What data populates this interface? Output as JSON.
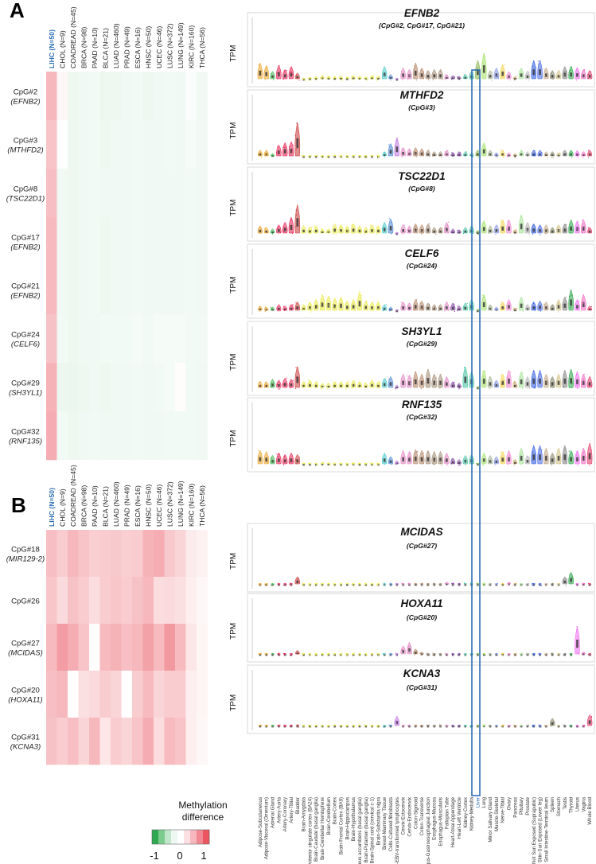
{
  "panels": [
    {
      "letter": "A",
      "columns": [
        "LIHC (N=50)",
        "CHOL (N=9)",
        "COADREAD (N=45)",
        "BRCA (N=98)",
        "PAAD (N=10)",
        "BLCA (N=21)",
        "LUAD (N=460)",
        "PRAD (N=49)",
        "ESCA (N=16)",
        "HNSC (N=50)",
        "UCEC (N=46)",
        "LUSC (N=372)",
        "LUNG (N=149)",
        "KIRC (N=160)",
        "THCA (N=56)"
      ],
      "rows": [
        {
          "cpg": "CpG#2",
          "gene": "(EFNB2)",
          "values": [
            0.42,
            0.05,
            -0.08,
            -0.07,
            -0.06,
            -0.09,
            -0.08,
            -0.07,
            -0.06,
            -0.08,
            -0.07,
            -0.06,
            -0.07,
            -0.02,
            -0.07
          ]
        },
        {
          "cpg": "CpG#3",
          "gene": "(MTHFD2)",
          "values": [
            0.35,
            -0.01,
            -0.08,
            -0.07,
            -0.06,
            -0.08,
            -0.07,
            -0.07,
            -0.06,
            -0.07,
            -0.07,
            -0.06,
            -0.07,
            -0.05,
            -0.07
          ]
        },
        {
          "cpg": "CpG#8",
          "gene": "(TSC22D1)",
          "values": [
            0.38,
            -0.07,
            -0.08,
            -0.07,
            -0.06,
            -0.07,
            -0.07,
            -0.07,
            -0.06,
            -0.07,
            -0.07,
            -0.07,
            -0.07,
            -0.06,
            -0.07
          ]
        },
        {
          "cpg": "CpG#17",
          "gene": "(EFNB2)",
          "values": [
            0.4,
            -0.07,
            -0.08,
            -0.07,
            -0.06,
            -0.08,
            -0.07,
            -0.07,
            -0.06,
            -0.07,
            -0.07,
            -0.07,
            -0.07,
            -0.06,
            -0.07
          ]
        },
        {
          "cpg": "CpG#21",
          "gene": "(EFNB2)",
          "values": [
            0.4,
            -0.07,
            -0.08,
            -0.07,
            -0.06,
            -0.08,
            -0.07,
            -0.07,
            -0.06,
            -0.07,
            -0.07,
            -0.07,
            -0.07,
            -0.06,
            -0.07
          ]
        },
        {
          "cpg": "CpG#24",
          "gene": "(CELF6)",
          "values": [
            0.36,
            -0.06,
            -0.08,
            -0.07,
            -0.07,
            -0.06,
            -0.06,
            -0.06,
            -0.05,
            -0.06,
            -0.05,
            -0.05,
            -0.05,
            -0.06,
            -0.06
          ]
        },
        {
          "cpg": "CpG#29",
          "gene": "(SH3YL1)",
          "values": [
            0.45,
            -0.09,
            -0.1,
            -0.08,
            -0.07,
            -0.08,
            -0.07,
            -0.07,
            -0.06,
            -0.07,
            -0.06,
            -0.05,
            0.02,
            -0.06,
            -0.07
          ]
        },
        {
          "cpg": "CpG#32",
          "gene": "(RNF135)",
          "values": [
            0.48,
            -0.06,
            -0.08,
            -0.07,
            -0.06,
            -0.07,
            -0.07,
            -0.07,
            -0.06,
            -0.07,
            -0.07,
            -0.06,
            -0.06,
            -0.06,
            -0.07
          ]
        }
      ],
      "violins": [
        {
          "gene": "EFNB2",
          "sub": "(CpG#2, CpG#17, CpG#21)"
        },
        {
          "gene": "MTHFD2",
          "sub": "(CpG#3)"
        },
        {
          "gene": "TSC22D1",
          "sub": "(CpG#8)"
        },
        {
          "gene": "CELF6",
          "sub": "(CpG#24)"
        },
        {
          "gene": "SH3YL1",
          "sub": "(CpG#29)"
        },
        {
          "gene": "RNF135",
          "sub": "(CpG#32)"
        }
      ]
    },
    {
      "letter": "B",
      "columns": [
        "LIHC (N=50)",
        "CHOL (N=9)",
        "COADREAD (N=45)",
        "BRCA (N=98)",
        "PAAD (N=10)",
        "BLCA (N=21)",
        "LUAD (N=460)",
        "PRAD (N=49)",
        "ESCA (N=16)",
        "HNSC (N=50)",
        "UCEC (N=46)",
        "LUSC (N=372)",
        "LUNG (N=149)",
        "KIRC (N=160)",
        "THCA (N=56)"
      ],
      "rows": [
        {
          "cpg": "CpG#18",
          "gene": "(MIR129-2)",
          "values": [
            0.38,
            0.3,
            0.42,
            0.35,
            0.28,
            0.3,
            0.32,
            0.28,
            0.3,
            0.45,
            0.48,
            0.32,
            0.25,
            0.12,
            0.08
          ]
        },
        {
          "cpg": "CpG#26",
          "gene": "",
          "values": [
            0.34,
            0.22,
            0.36,
            0.3,
            0.2,
            0.3,
            0.34,
            0.3,
            0.36,
            0.42,
            0.2,
            0.22,
            0.18,
            0.1,
            0.05
          ]
        },
        {
          "cpg": "CpG#27",
          "gene": "(MCIDAS)",
          "values": [
            0.4,
            0.58,
            0.48,
            0.35,
            0.02,
            0.4,
            0.45,
            0.38,
            0.42,
            0.55,
            0.4,
            0.6,
            0.4,
            0.15,
            0.06
          ]
        },
        {
          "cpg": "CpG#20",
          "gene": "(HOXA11)",
          "values": [
            0.38,
            0.42,
            0.01,
            0.18,
            0.22,
            0.3,
            0.25,
            0.01,
            0.3,
            0.4,
            0.25,
            0.3,
            0.3,
            0.1,
            0.06
          ]
        },
        {
          "cpg": "CpG#31",
          "gene": "(KCNA3)",
          "values": [
            0.36,
            0.3,
            0.38,
            0.25,
            0.42,
            0.15,
            0.3,
            0.25,
            0.35,
            0.48,
            0.2,
            0.4,
            0.35,
            0.1,
            0.05
          ]
        }
      ],
      "violins": [
        {
          "gene": "MCIDAS",
          "sub": "(CpG#27)"
        },
        {
          "gene": "HOXA11",
          "sub": "(CpG#20)"
        },
        {
          "gene": "KCNA3",
          "sub": "(CpG#31)"
        }
      ]
    }
  ],
  "y_label": "TPM",
  "highlight_tissue": "Liver",
  "tissues": [
    "Adipose-Subcutaneous",
    "Adipose-Visceral (Omentum)",
    "Adrenal Gland",
    "Artery-Aorta",
    "Artery-Coronary",
    "Artery-Tibial",
    "Bladder",
    "Brain-Amygdala",
    "Brain-Anterior cingulate cortex (BA24)",
    "Brain-Caudate (basal ganglia)",
    "Brain-Cerebellar Hemisphere",
    "Brain-Cerebellum",
    "Brain-Cortex",
    "Brain-Frontal Cortex (BA9)",
    "Brain-Hippocampus",
    "Brain-Hypothalamus",
    "Brain-Nucleus accumbens (basal ganglia)",
    "Brain-Putamen (basal ganglia)",
    "Brain-Spinal cord (cervical c-1)",
    "Brain-Substantia nigra",
    "Breast-Mammary Tissue",
    "Cells-Cultured fibroblasts",
    "Cells-EBV-transformed lymphocytes",
    "Cervix-Ectocervix",
    "Cervix-Endocervix",
    "Colon-Sigmoid",
    "Colon-Transverse",
    "Esophagus-Gastroesophageal Junction",
    "Esophagus-Mucosa",
    "Esophagus-Muscularis",
    "Fallopian Tube",
    "Heart-Atrial Appendage",
    "Heart-Left Ventricle",
    "Kidney-Cortex",
    "Kidney-Medulla",
    "Liver",
    "Lung",
    "Minor Salivary Gland",
    "Muscle-Skeletal",
    "Nerve-Tibial",
    "Ovary",
    "Pancreas",
    "Pituitary",
    "Prostate",
    "Skin-Not Sun Exposed (Suprapubic)",
    "Skin-Sun Exposed (Lower leg)",
    "Small Intestine-Terminal Ileum",
    "Spleen",
    "Stomach",
    "Testis",
    "Thyroid",
    "Uterus",
    "Vagina",
    "Whole Blood"
  ],
  "tissue_colors": [
    "#e8a020",
    "#e8a020",
    "#3cb44b",
    "#e6194b",
    "#e6194b",
    "#e6194b",
    "#c83232",
    "#e8e840",
    "#e8e840",
    "#e8e840",
    "#e8e840",
    "#e8e840",
    "#e8e840",
    "#e8e840",
    "#e8e840",
    "#e8e840",
    "#e8e840",
    "#e8e840",
    "#e8e840",
    "#e8e840",
    "#40c8c8",
    "#4682d0",
    "#c070e0",
    "#e080c0",
    "#e080c0",
    "#b08060",
    "#b08060",
    "#a08870",
    "#a08870",
    "#a08870",
    "#e080c0",
    "#8040a0",
    "#8040a0",
    "#40c0a0",
    "#40c0a0",
    "#80b040",
    "#a0e060",
    "#a0b090",
    "#8090e0",
    "#f0d040",
    "#f080d0",
    "#c8a060",
    "#a0e090",
    "#b0b0b0",
    "#2050e0",
    "#4060e0",
    "#c0a080",
    "#808060",
    "#d0c080",
    "#808080",
    "#20a040",
    "#f060f0",
    "#f060c0",
    "#e03060"
  ],
  "violin_profiles": [
    [
      0.35,
      0.3,
      0.18,
      0.3,
      0.22,
      0.28,
      0.15,
      0.05,
      0.07,
      0.08,
      0.1,
      0.09,
      0.08,
      0.09,
      0.07,
      0.1,
      0.09,
      0.08,
      0.1,
      0.09,
      0.28,
      0.12,
      0.02,
      0.25,
      0.22,
      0.35,
      0.25,
      0.2,
      0.22,
      0.22,
      0.12,
      0.1,
      0.08,
      0.12,
      0.18,
      0.4,
      0.55,
      0.2,
      0.25,
      0.32,
      0.18,
      0.08,
      0.25,
      0.18,
      0.4,
      0.4,
      0.25,
      0.2,
      0.2,
      0.28,
      0.28,
      0.26,
      0.22,
      0.2
    ],
    [
      0.15,
      0.15,
      0.08,
      0.25,
      0.3,
      0.32,
      0.7,
      0.03,
      0.03,
      0.03,
      0.04,
      0.04,
      0.03,
      0.03,
      0.03,
      0.04,
      0.03,
      0.03,
      0.03,
      0.03,
      0.12,
      0.28,
      0.4,
      0.2,
      0.18,
      0.2,
      0.18,
      0.15,
      0.12,
      0.12,
      0.15,
      0.1,
      0.12,
      0.12,
      0.1,
      0.15,
      0.3,
      0.15,
      0.1,
      0.15,
      0.1,
      0.08,
      0.15,
      0.12,
      0.15,
      0.15,
      0.12,
      0.12,
      0.1,
      0.15,
      0.15,
      0.14,
      0.12,
      0.15
    ],
    [
      0.18,
      0.15,
      0.12,
      0.2,
      0.25,
      0.35,
      0.6,
      0.18,
      0.16,
      0.18,
      0.12,
      0.12,
      0.22,
      0.2,
      0.18,
      0.22,
      0.18,
      0.15,
      0.2,
      0.18,
      0.25,
      0.32,
      0.05,
      0.2,
      0.18,
      0.22,
      0.2,
      0.22,
      0.15,
      0.15,
      0.25,
      0.12,
      0.1,
      0.15,
      0.18,
      0.08,
      0.28,
      0.18,
      0.2,
      0.3,
      0.3,
      0.1,
      0.4,
      0.25,
      0.22,
      0.2,
      0.2,
      0.15,
      0.2,
      0.22,
      0.3,
      0.28,
      0.3,
      0.15
    ],
    [
      0.12,
      0.1,
      0.1,
      0.15,
      0.12,
      0.15,
      0.2,
      0.15,
      0.2,
      0.25,
      0.35,
      0.32,
      0.28,
      0.3,
      0.22,
      0.25,
      0.4,
      0.22,
      0.2,
      0.2,
      0.15,
      0.1,
      0.03,
      0.2,
      0.18,
      0.25,
      0.22,
      0.18,
      0.15,
      0.15,
      0.2,
      0.18,
      0.12,
      0.18,
      0.25,
      0.05,
      0.35,
      0.15,
      0.1,
      0.2,
      0.25,
      0.08,
      0.3,
      0.15,
      0.2,
      0.22,
      0.2,
      0.15,
      0.25,
      0.3,
      0.45,
      0.25,
      0.35,
      0.12
    ],
    [
      0.15,
      0.15,
      0.2,
      0.18,
      0.22,
      0.2,
      0.45,
      0.15,
      0.18,
      0.15,
      0.12,
      0.12,
      0.15,
      0.15,
      0.15,
      0.18,
      0.15,
      0.12,
      0.18,
      0.15,
      0.22,
      0.25,
      0.08,
      0.3,
      0.28,
      0.35,
      0.3,
      0.4,
      0.3,
      0.3,
      0.25,
      0.15,
      0.12,
      0.45,
      0.35,
      0.05,
      0.38,
      0.25,
      0.18,
      0.3,
      0.38,
      0.15,
      0.35,
      0.25,
      0.38,
      0.38,
      0.3,
      0.25,
      0.3,
      0.38,
      0.4,
      0.35,
      0.3,
      0.25
    ],
    [
      0.3,
      0.28,
      0.2,
      0.25,
      0.22,
      0.25,
      0.22,
      0.05,
      0.05,
      0.05,
      0.06,
      0.06,
      0.05,
      0.05,
      0.05,
      0.06,
      0.05,
      0.05,
      0.05,
      0.05,
      0.25,
      0.18,
      0.1,
      0.3,
      0.28,
      0.32,
      0.3,
      0.3,
      0.28,
      0.28,
      0.25,
      0.15,
      0.12,
      0.2,
      0.22,
      0.05,
      0.25,
      0.2,
      0.18,
      0.28,
      0.3,
      0.12,
      0.35,
      0.2,
      0.4,
      0.4,
      0.35,
      0.25,
      0.35,
      0.4,
      0.3,
      0.3,
      0.35,
      0.45
    ]
  ],
  "violin_profiles_b": [
    [
      0.04,
      0.03,
      0.02,
      0.02,
      0.02,
      0.03,
      0.2,
      0.01,
      0.01,
      0.01,
      0.01,
      0.01,
      0.01,
      0.01,
      0.01,
      0.01,
      0.01,
      0.01,
      0.01,
      0.01,
      0.03,
      0.02,
      0.01,
      0.05,
      0.04,
      0.02,
      0.02,
      0.03,
      0.02,
      0.02,
      0.08,
      0.02,
      0.02,
      0.03,
      0.02,
      0.01,
      0.06,
      0.02,
      0.02,
      0.03,
      0.08,
      0.02,
      0.05,
      0.04,
      0.03,
      0.03,
      0.03,
      0.02,
      0.05,
      0.2,
      0.3,
      0.05,
      0.06,
      0.02
    ],
    [
      0.04,
      0.04,
      0.03,
      0.05,
      0.04,
      0.04,
      0.12,
      0.01,
      0.01,
      0.01,
      0.01,
      0.01,
      0.01,
      0.01,
      0.01,
      0.01,
      0.01,
      0.01,
      0.01,
      0.01,
      0.04,
      0.05,
      0.01,
      0.22,
      0.3,
      0.15,
      0.08,
      0.05,
      0.03,
      0.03,
      0.05,
      0.02,
      0.02,
      0.04,
      0.05,
      0.01,
      0.04,
      0.03,
      0.04,
      0.06,
      0.05,
      0.02,
      0.04,
      0.06,
      0.03,
      0.03,
      0.04,
      0.02,
      0.04,
      0.03,
      0.03,
      0.65,
      0.08,
      0.02
    ],
    [
      0.03,
      0.03,
      0.02,
      0.02,
      0.02,
      0.02,
      0.03,
      0.01,
      0.01,
      0.01,
      0.01,
      0.01,
      0.01,
      0.01,
      0.01,
      0.01,
      0.01,
      0.01,
      0.01,
      0.01,
      0.03,
      0.02,
      0.25,
      0.03,
      0.03,
      0.04,
      0.04,
      0.03,
      0.03,
      0.03,
      0.03,
      0.02,
      0.02,
      0.03,
      0.03,
      0.01,
      0.06,
      0.03,
      0.02,
      0.03,
      0.03,
      0.02,
      0.03,
      0.03,
      0.03,
      0.03,
      0.05,
      0.2,
      0.04,
      0.03,
      0.03,
      0.03,
      0.05,
      0.28
    ]
  ],
  "legend": {
    "title_line1": "Methylation",
    "title_line2": "difference",
    "ticks": [
      "-1",
      "0",
      "1"
    ],
    "colors": [
      "#2ea851",
      "#7ccc8d",
      "#c2e6ca",
      "#eef7f1",
      "#ffffff",
      "#fbe0e3",
      "#f7b7be",
      "#f18792",
      "#ea5560"
    ]
  }
}
